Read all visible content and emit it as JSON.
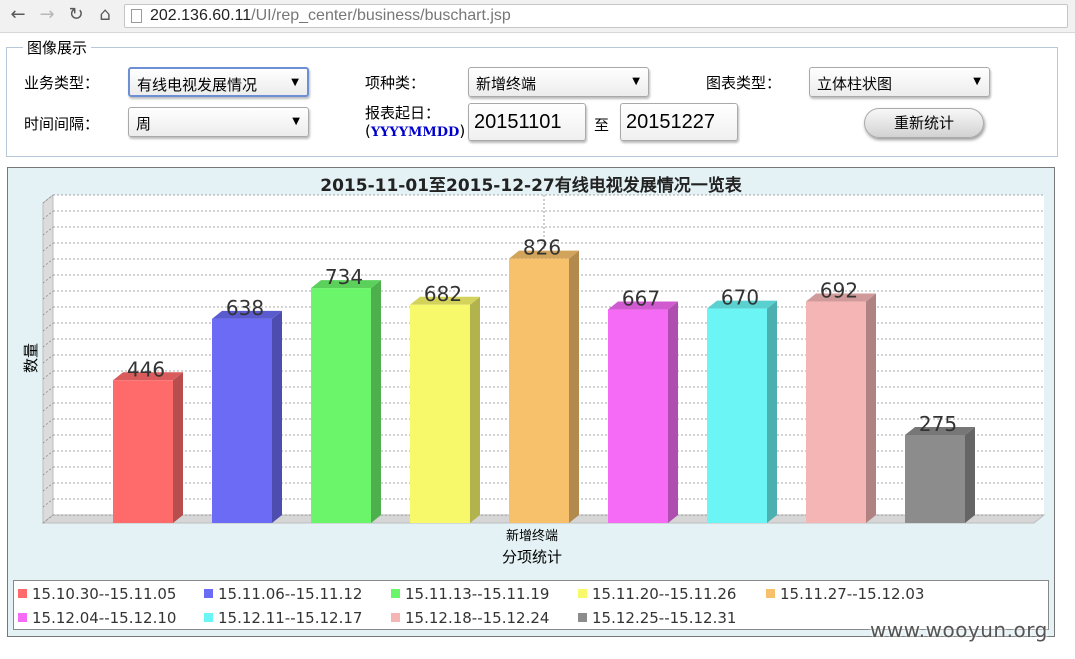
{
  "browser": {
    "url_host": "202.136.60.11",
    "url_path": "/UI/rep_center/business/buschart.jsp"
  },
  "form": {
    "legend": "图像展示",
    "business_type_label": "业务类型：",
    "business_type_value": "有线电视发展情况",
    "item_type_label": "项种类：",
    "item_type_value": "新增终端",
    "chart_type_label": "图表类型：",
    "chart_type_value": "立体柱状图",
    "interval_label": "时间间隔：",
    "interval_value": "周",
    "date_label": "报表起日：",
    "date_format": "YYYYMMDD",
    "date_from": "20151101",
    "date_to_sep": "至",
    "date_to": "20151227",
    "submit_label": "重新统计"
  },
  "chart_data": {
    "type": "bar",
    "style": "3d",
    "title": "2015-11-01至2015-12-27有线电视发展情况一览表",
    "xlabel": "分项统计",
    "ylabel": "数量",
    "category_label": "新增终端",
    "ylim": [
      0,
      1000
    ],
    "grid": true,
    "legend_position": "bottom",
    "series": [
      {
        "name": "15.10.30--15.11.05",
        "value": 446,
        "color": "#ff6b6b"
      },
      {
        "name": "15.11.06--15.11.12",
        "value": 638,
        "color": "#6b6bf5"
      },
      {
        "name": "15.11.13--15.11.19",
        "value": 734,
        "color": "#6bf56b"
      },
      {
        "name": "15.11.20--15.11.26",
        "value": 682,
        "color": "#f8f86b"
      },
      {
        "name": "15.11.27--15.12.03",
        "value": 826,
        "color": "#f7c06b"
      },
      {
        "name": "15.12.04--15.12.10",
        "value": 667,
        "color": "#f56bf5"
      },
      {
        "name": "15.12.11--15.12.17",
        "value": 670,
        "color": "#6bf5f5"
      },
      {
        "name": "15.12.18--15.12.24",
        "value": 692,
        "color": "#f5b5b5"
      },
      {
        "name": "15.12.25--15.12.31",
        "value": 275,
        "color": "#8c8c8c"
      }
    ]
  },
  "watermark": "www.wooyun.org"
}
